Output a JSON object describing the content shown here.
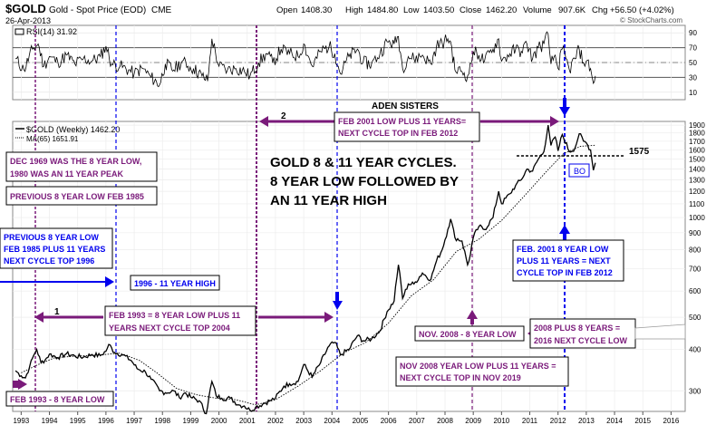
{
  "header": {
    "symbol": "$GOLD",
    "name": "Gold - Spot Price (EOD)",
    "exchange": "CME",
    "date": "26-Apr-2013",
    "open_label": "Open",
    "open": "1408.30",
    "high_label": "High",
    "high": "1484.80",
    "low_label": "Low",
    "low": "1403.50",
    "close_label": "Close",
    "close": "1462.20",
    "volume_label": "Volume",
    "volume": "907.6K",
    "chg_label": "Chg",
    "chg": "+56.50 (+4.02%)",
    "watermark": "© StockCharts.com"
  },
  "rsi_panel": {
    "legend": "RSI(14) 31.92",
    "ticks": [
      90,
      70,
      50,
      30,
      10
    ],
    "overbought": 70,
    "oversold": 30,
    "mid": 50
  },
  "price_panel": {
    "legend_price": "$GOLD (Weekly) 1462.20",
    "legend_ma": "MA(65) 1651.91",
    "ticks": [
      1900,
      1800,
      1700,
      1600,
      1500,
      1400,
      1300,
      1200,
      1100,
      1000,
      900,
      800,
      700,
      600,
      500,
      400,
      300
    ],
    "tick_labels": [
      "1900",
      "1800",
      "1700",
      "1600",
      "1500",
      "1400",
      "1300",
      "1200",
      "1100",
      "1000",
      "900",
      "800",
      "700",
      "600",
      "500",
      "400",
      "300"
    ],
    "level_1575": "1575",
    "bo_label": "BO"
  },
  "x_axis": {
    "years": [
      "1993",
      "1994",
      "1995",
      "1996",
      "1997",
      "1998",
      "1999",
      "2000",
      "2001",
      "2002",
      "2003",
      "2004",
      "2005",
      "2006",
      "2007",
      "2008",
      "2009",
      "2010",
      "2011",
      "2012",
      "2013",
      "2014",
      "2015",
      "2016"
    ]
  },
  "annotations": {
    "aden": "ADEN SISTERS",
    "cycles_title_1": "GOLD 8 & 11 YEAR CYCLES.",
    "cycles_title_2": "8 YEAR LOW FOLLOWED BY",
    "cycles_title_3": "AN 11 YEAR HIGH",
    "dec1969_1": "DEC 1969 WAS THE 8 YEAR LOW,",
    "dec1969_2": "1980 WAS AN 11 YEAR PEAK",
    "prev_low_1985": "PREVIOUS 8 YEAR LOW FEB 1985",
    "prev_low_1": "PREVIOUS 8 YEAR LOW",
    "prev_low_2": "FEB 1985 PLUS 11 YEARS",
    "prev_low_3": "NEXT CYCLE TOP 1996",
    "high_1996": "1996 - 11 YEAR HIGH",
    "feb2001_1": "FEB 2001 LOW PLUS 11 YEARS=",
    "feb2001_2": "NEXT CYCLE TOP IN FEB 2012",
    "feb1993_1": "FEB 1993 = 8 YEAR LOW PLUS 11",
    "feb1993_2": "YEARS NEXT CYCLE TOP 2004",
    "feb1993_low": "FEB 1993 - 8 YEAR LOW",
    "blue2001_1": "FEB. 2001  8 YEAR LOW",
    "blue2001_2": "PLUS 11 YEARS = NEXT",
    "blue2001_3": "CYCLE TOP IN FEB 2012",
    "nov2008_low": "NOV. 2008 - 8 YEAR LOW",
    "plus8_1": "2008 PLUS 8 YEARS =",
    "plus8_2": "2016 NEXT CYCLE LOW",
    "nov2008_1": "NOV 2008 YEAR LOW PLUS 11 YEARS =",
    "nov2008_2": "NEXT CYCLE TOP IN NOV 2019",
    "arrow1": "1",
    "arrow2": "2"
  },
  "colors": {
    "purple": "#7a1a7a",
    "blue": "#0000ee",
    "rsi_line": "#000000",
    "grid": "#dddddd"
  },
  "chart_data": {
    "type": "line",
    "x_unit": "year",
    "scale": "log",
    "ylim": [
      260,
      1950
    ],
    "rsi_ylim": [
      0,
      100
    ],
    "series": [
      {
        "name": "$GOLD (Weekly)",
        "points": [
          [
            1992.8,
            345
          ],
          [
            1993.0,
            333
          ],
          [
            1993.15,
            328
          ],
          [
            1993.3,
            355
          ],
          [
            1993.45,
            385
          ],
          [
            1993.55,
            400
          ],
          [
            1993.7,
            365
          ],
          [
            1993.85,
            372
          ],
          [
            1994.0,
            387
          ],
          [
            1994.3,
            378
          ],
          [
            1994.6,
            388
          ],
          [
            1994.9,
            382
          ],
          [
            1995.2,
            379
          ],
          [
            1995.5,
            386
          ],
          [
            1995.8,
            383
          ],
          [
            1996.0,
            395
          ],
          [
            1996.1,
            414
          ],
          [
            1996.3,
            392
          ],
          [
            1996.6,
            385
          ],
          [
            1996.9,
            370
          ],
          [
            1997.1,
            350
          ],
          [
            1997.4,
            342
          ],
          [
            1997.6,
            325
          ],
          [
            1997.9,
            300
          ],
          [
            1998.1,
            296
          ],
          [
            1998.4,
            300
          ],
          [
            1998.6,
            286
          ],
          [
            1998.8,
            296
          ],
          [
            1999.0,
            287
          ],
          [
            1999.3,
            280
          ],
          [
            1999.55,
            256
          ],
          [
            1999.75,
            320
          ],
          [
            1999.9,
            290
          ],
          [
            2000.1,
            285
          ],
          [
            2000.4,
            285
          ],
          [
            2000.7,
            272
          ],
          [
            2000.9,
            270
          ],
          [
            2001.1,
            262
          ],
          [
            2001.3,
            268
          ],
          [
            2001.6,
            275
          ],
          [
            2001.8,
            280
          ],
          [
            2002.0,
            285
          ],
          [
            2002.3,
            310
          ],
          [
            2002.5,
            315
          ],
          [
            2002.8,
            320
          ],
          [
            2003.0,
            360
          ],
          [
            2003.3,
            330
          ],
          [
            2003.6,
            365
          ],
          [
            2003.9,
            410
          ],
          [
            2004.1,
            420
          ],
          [
            2004.3,
            385
          ],
          [
            2004.6,
            400
          ],
          [
            2004.9,
            440
          ],
          [
            2005.1,
            425
          ],
          [
            2005.4,
            430
          ],
          [
            2005.7,
            455
          ],
          [
            2005.95,
            520
          ],
          [
            2006.2,
            560
          ],
          [
            2006.35,
            720
          ],
          [
            2006.5,
            570
          ],
          [
            2006.7,
            630
          ],
          [
            2006.9,
            630
          ],
          [
            2007.2,
            680
          ],
          [
            2007.5,
            650
          ],
          [
            2007.7,
            740
          ],
          [
            2007.9,
            800
          ],
          [
            2008.1,
            920
          ],
          [
            2008.2,
            990
          ],
          [
            2008.35,
            870
          ],
          [
            2008.6,
            850
          ],
          [
            2008.8,
            720
          ],
          [
            2008.85,
            740
          ],
          [
            2009.0,
            870
          ],
          [
            2009.2,
            940
          ],
          [
            2009.4,
            920
          ],
          [
            2009.7,
            1000
          ],
          [
            2009.9,
            1200
          ],
          [
            2010.0,
            1100
          ],
          [
            2010.3,
            1180
          ],
          [
            2010.5,
            1250
          ],
          [
            2010.7,
            1300
          ],
          [
            2010.9,
            1400
          ],
          [
            2011.1,
            1380
          ],
          [
            2011.3,
            1500
          ],
          [
            2011.5,
            1580
          ],
          [
            2011.65,
            1900
          ],
          [
            2011.75,
            1650
          ],
          [
            2011.9,
            1750
          ],
          [
            2012.0,
            1590
          ],
          [
            2012.15,
            1780
          ],
          [
            2012.4,
            1580
          ],
          [
            2012.6,
            1620
          ],
          [
            2012.75,
            1790
          ],
          [
            2012.9,
            1700
          ],
          [
            2013.0,
            1680
          ],
          [
            2013.15,
            1600
          ],
          [
            2013.25,
            1390
          ],
          [
            2013.32,
            1462
          ]
        ]
      },
      {
        "name": "MA(65)",
        "points": [
          [
            1993.0,
            340
          ],
          [
            1993.6,
            360
          ],
          [
            1994.2,
            378
          ],
          [
            1995.0,
            382
          ],
          [
            1995.8,
            385
          ],
          [
            1996.5,
            390
          ],
          [
            1997.2,
            370
          ],
          [
            1997.8,
            340
          ],
          [
            1998.5,
            305
          ],
          [
            1999.2,
            292
          ],
          [
            1999.9,
            285
          ],
          [
            2000.6,
            282
          ],
          [
            2001.3,
            272
          ],
          [
            2002.0,
            282
          ],
          [
            2002.8,
            310
          ],
          [
            2003.6,
            345
          ],
          [
            2004.4,
            390
          ],
          [
            2005.2,
            420
          ],
          [
            2006.0,
            480
          ],
          [
            2006.8,
            580
          ],
          [
            2007.6,
            650
          ],
          [
            2008.4,
            790
          ],
          [
            2009.2,
            860
          ],
          [
            2010.0,
            980
          ],
          [
            2010.8,
            1160
          ],
          [
            2011.6,
            1380
          ],
          [
            2012.2,
            1560
          ],
          [
            2012.8,
            1640
          ],
          [
            2013.3,
            1652
          ]
        ]
      },
      {
        "name": "RSI(14)",
        "points": [
          [
            1992.8,
            55
          ],
          [
            1993.1,
            40
          ],
          [
            1993.4,
            68
          ],
          [
            1993.6,
            75
          ],
          [
            1993.8,
            45
          ],
          [
            1994.0,
            58
          ],
          [
            1994.3,
            50
          ],
          [
            1994.6,
            60
          ],
          [
            1994.9,
            48
          ],
          [
            1995.2,
            55
          ],
          [
            1995.5,
            52
          ],
          [
            1995.8,
            58
          ],
          [
            1996.0,
            72
          ],
          [
            1996.2,
            48
          ],
          [
            1996.5,
            45
          ],
          [
            1996.8,
            40
          ],
          [
            1997.0,
            35
          ],
          [
            1997.3,
            42
          ],
          [
            1997.6,
            30
          ],
          [
            1997.9,
            20
          ],
          [
            1998.1,
            48
          ],
          [
            1998.4,
            40
          ],
          [
            1998.7,
            52
          ],
          [
            1998.9,
            45
          ],
          [
            1999.1,
            42
          ],
          [
            1999.4,
            32
          ],
          [
            1999.6,
            25
          ],
          [
            1999.75,
            82
          ],
          [
            2000.0,
            45
          ],
          [
            2000.3,
            40
          ],
          [
            2000.6,
            42
          ],
          [
            2000.9,
            38
          ],
          [
            2001.1,
            32
          ],
          [
            2001.4,
            50
          ],
          [
            2001.7,
            62
          ],
          [
            2001.9,
            50
          ],
          [
            2002.2,
            68
          ],
          [
            2002.5,
            62
          ],
          [
            2002.8,
            58
          ],
          [
            2003.0,
            75
          ],
          [
            2003.3,
            45
          ],
          [
            2003.6,
            65
          ],
          [
            2003.9,
            72
          ],
          [
            2004.1,
            62
          ],
          [
            2004.3,
            35
          ],
          [
            2004.6,
            58
          ],
          [
            2004.9,
            68
          ],
          [
            2005.1,
            50
          ],
          [
            2005.4,
            48
          ],
          [
            2005.7,
            62
          ],
          [
            2005.95,
            78
          ],
          [
            2006.2,
            75
          ],
          [
            2006.35,
            85
          ],
          [
            2006.5,
            42
          ],
          [
            2006.7,
            58
          ],
          [
            2006.9,
            55
          ],
          [
            2007.2,
            60
          ],
          [
            2007.5,
            48
          ],
          [
            2007.7,
            72
          ],
          [
            2007.9,
            76
          ],
          [
            2008.1,
            82
          ],
          [
            2008.2,
            78
          ],
          [
            2008.35,
            40
          ],
          [
            2008.6,
            38
          ],
          [
            2008.8,
            32
          ],
          [
            2008.85,
            35
          ],
          [
            2009.0,
            65
          ],
          [
            2009.2,
            60
          ],
          [
            2009.4,
            52
          ],
          [
            2009.7,
            68
          ],
          [
            2009.9,
            82
          ],
          [
            2010.0,
            52
          ],
          [
            2010.3,
            62
          ],
          [
            2010.5,
            68
          ],
          [
            2010.7,
            65
          ],
          [
            2010.9,
            75
          ],
          [
            2011.1,
            55
          ],
          [
            2011.3,
            70
          ],
          [
            2011.5,
            75
          ],
          [
            2011.65,
            88
          ],
          [
            2011.75,
            48
          ],
          [
            2011.9,
            60
          ],
          [
            2012.0,
            42
          ],
          [
            2012.15,
            68
          ],
          [
            2012.4,
            40
          ],
          [
            2012.6,
            55
          ],
          [
            2012.75,
            68
          ],
          [
            2012.9,
            50
          ],
          [
            2013.0,
            52
          ],
          [
            2013.15,
            42
          ],
          [
            2013.25,
            22
          ],
          [
            2013.32,
            32
          ]
        ]
      }
    ]
  }
}
